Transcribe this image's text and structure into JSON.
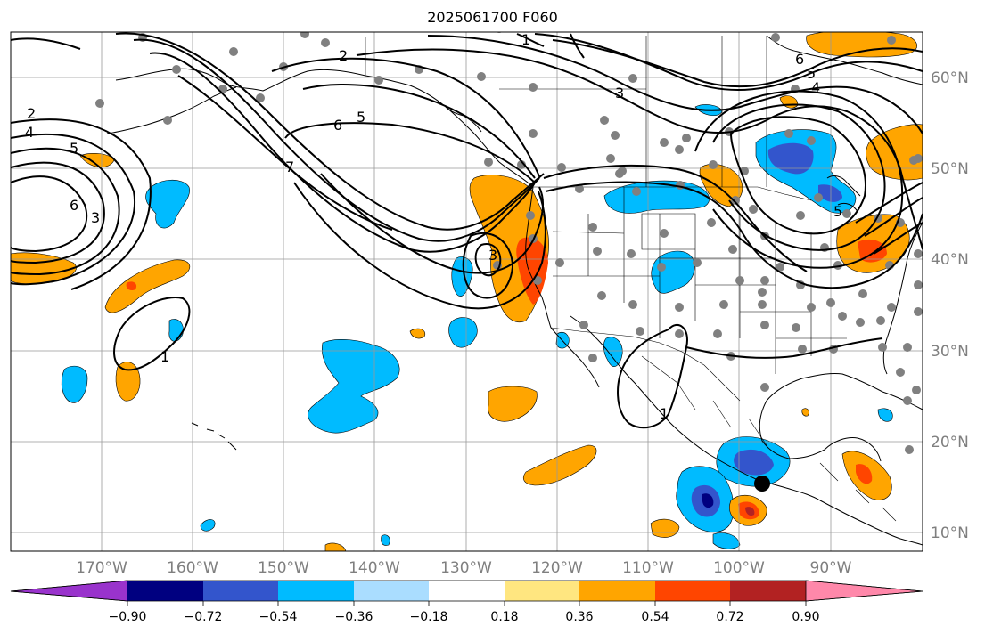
{
  "title": "2025061700 F060",
  "map": {
    "projection": "PlateCarree",
    "lon_range": [
      -180,
      -80
    ],
    "lat_range": [
      8,
      65
    ],
    "gridlines": true,
    "lon_labels": [
      "170°W",
      "160°W",
      "150°W",
      "140°W",
      "130°W",
      "120°W",
      "110°W",
      "100°W",
      "90°W"
    ],
    "lat_labels": [
      "10°N",
      "20°N",
      "30°N",
      "40°N",
      "50°N",
      "60°N"
    ],
    "contour_labels": [
      "2",
      "4",
      "5",
      "6",
      "3",
      "7",
      "1",
      "5",
      "6",
      "3",
      "6",
      "4",
      "5",
      "5",
      "2",
      "1",
      "1",
      "3"
    ],
    "marker": "storm-center-dot"
  },
  "colorbar": {
    "ticks": [
      "−0.90",
      "−0.72",
      "−0.54",
      "−0.36",
      "−0.18",
      "0.18",
      "0.36",
      "0.54",
      "0.72",
      "0.90"
    ],
    "colors": [
      "#9933cc",
      "#000080",
      "#3355cc",
      "#00bbff",
      "#aaddff",
      "#ffffff",
      "#ffe680",
      "#ffa500",
      "#ff4500",
      "#b22222",
      "#ff88aa"
    ],
    "extend": "both"
  }
}
